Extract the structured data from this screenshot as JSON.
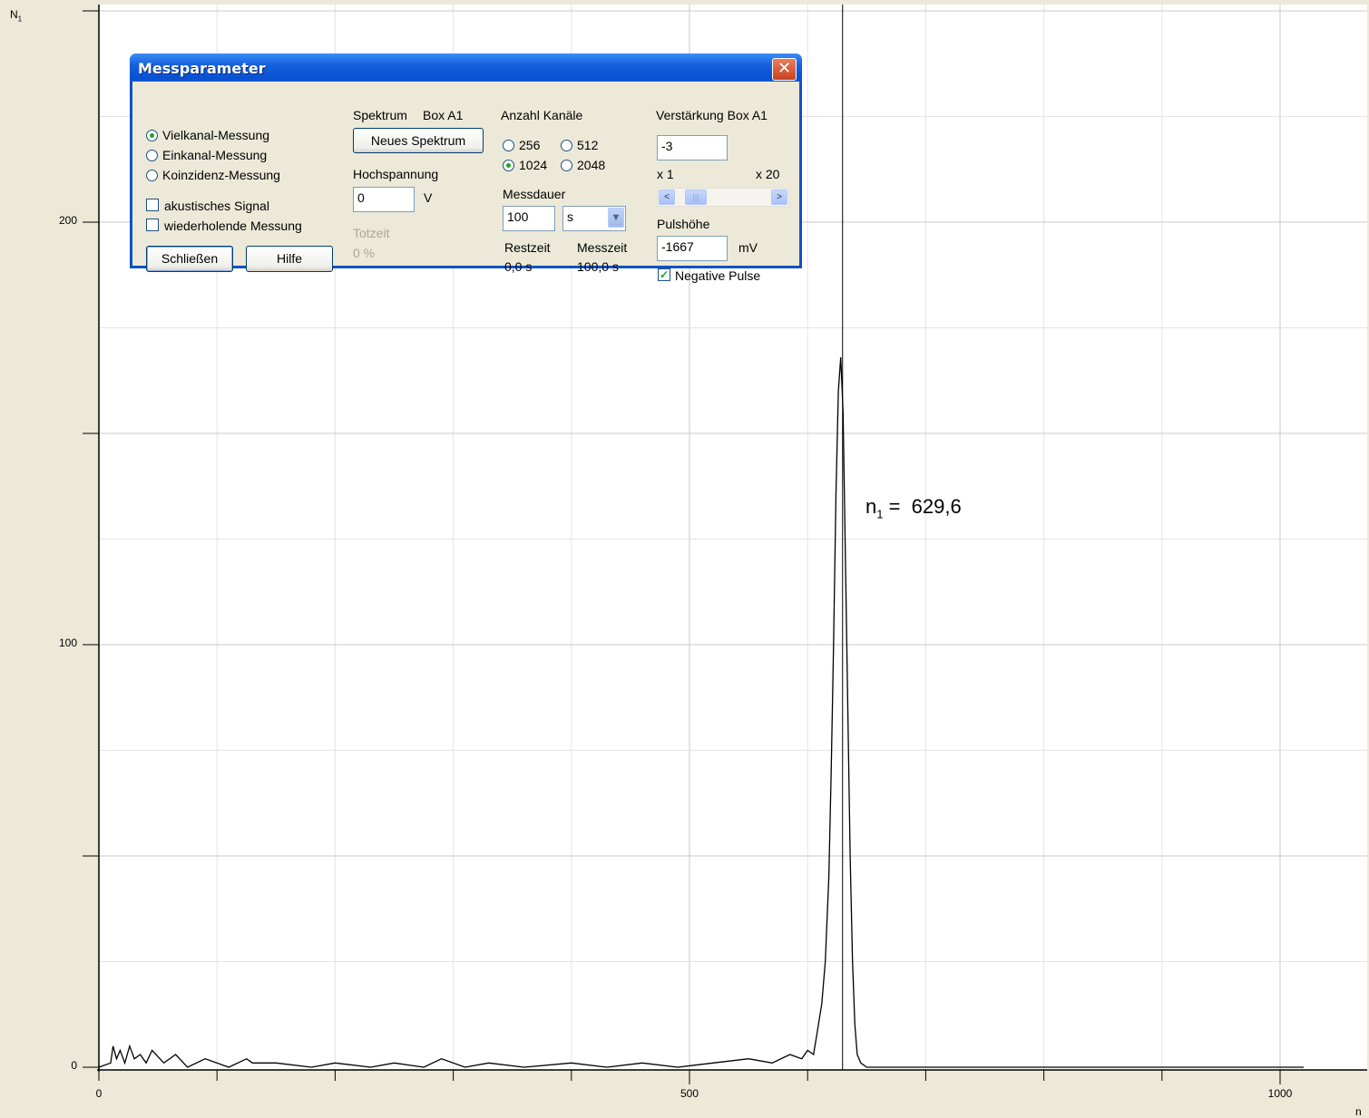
{
  "window": {
    "title": "Messparameter",
    "close_glyph": "✕"
  },
  "mode": {
    "options": [
      "Vielkanal-Messung",
      "Einkanal-Messung",
      "Koinzidenz-Messung"
    ],
    "selected": "Vielkanal-Messung"
  },
  "options": {
    "acoustic": {
      "label": "akustisches Signal",
      "checked": false
    },
    "repeat": {
      "label": "wiederholende Messung",
      "checked": false
    }
  },
  "buttons": {
    "close": "Schließen",
    "help": "Hilfe",
    "new_spectrum": "Neues Spektrum"
  },
  "spectrum": {
    "label": "Spektrum",
    "box": "Box A1"
  },
  "high_voltage": {
    "label": "Hochspannung",
    "value": "0",
    "unit": "V"
  },
  "dead_time": {
    "label": "Totzeit",
    "value": "0 %"
  },
  "channels": {
    "label": "Anzahl Kanäle",
    "options": [
      "256",
      "512",
      "1024",
      "2048"
    ],
    "selected": "1024"
  },
  "duration": {
    "label": "Messdauer",
    "value": "100",
    "unit": "s"
  },
  "times": {
    "remaining_label": "Restzeit",
    "remaining_value": "0,0 s",
    "measure_label": "Messzeit",
    "measure_value": "100,0 s"
  },
  "gain": {
    "label": "Verstärkung Box A1",
    "value": "-3",
    "min_label": "x 1",
    "max_label": "x 20",
    "slider_left_icon": "<",
    "slider_right_icon": ">",
    "slider_thumb_icon": "|||"
  },
  "pulse_height": {
    "label": "Pulshöhe",
    "value": "-1667",
    "unit": "mV"
  },
  "negative_pulse": {
    "label": "Negative Pulse",
    "checked": true
  },
  "colors": {
    "title_bar": "#0A52C9",
    "close_button": "#D9542E",
    "plot_background": "#FFFFFF",
    "dialog_background": "#ECE9D8"
  },
  "chart_data": {
    "type": "line",
    "ylabel": "N1",
    "xlabel": "n",
    "xlim": [
      0,
      1075
    ],
    "ylim": [
      0,
      250
    ],
    "x_ticks": [
      0,
      500,
      1000
    ],
    "y_ticks": [
      0,
      100,
      200
    ],
    "grid": true,
    "annotation": {
      "text_main": "n",
      "text_sub": "1",
      "text_rest": " =  629,6",
      "x": 629.6
    },
    "series": [
      {
        "x": [
          0,
          10,
          12,
          15,
          18,
          22,
          26,
          30,
          35,
          40,
          45,
          55,
          65,
          75,
          90,
          110,
          125,
          130,
          150,
          180,
          200,
          230,
          250,
          275,
          290,
          310,
          330,
          360,
          400,
          430,
          460,
          490,
          520,
          550,
          570,
          585,
          595,
          600,
          605,
          608,
          612,
          615,
          618,
          620,
          622,
          624,
          626,
          628,
          630,
          632,
          634,
          636,
          638,
          640,
          642,
          645,
          650,
          660,
          700,
          800,
          900,
          1000,
          1020
        ],
        "y": [
          0,
          1,
          5,
          2,
          4,
          1,
          5,
          2,
          3,
          1,
          4,
          1,
          3,
          0,
          2,
          0,
          2,
          1,
          1,
          0,
          1,
          0,
          1,
          0,
          2,
          0,
          1,
          0,
          1,
          0,
          1,
          0,
          1,
          2,
          1,
          3,
          2,
          4,
          3,
          8,
          15,
          25,
          45,
          70,
          100,
          135,
          160,
          168,
          155,
          120,
          85,
          50,
          25,
          10,
          3,
          1,
          0,
          0,
          0,
          0,
          0,
          0,
          0
        ]
      }
    ]
  }
}
